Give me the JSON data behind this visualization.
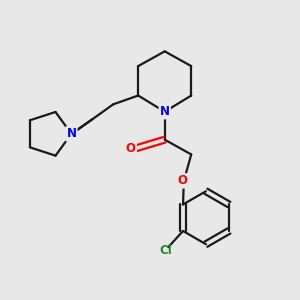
{
  "background_color": "#e8e8e8",
  "bond_color": "#1a1a1a",
  "N_color": "#0000ff",
  "O_color": "#ff0000",
  "Cl_color": "#228B22",
  "line_width": 1.6,
  "figsize": [
    3.0,
    3.0
  ],
  "dpi": 100,
  "xlim": [
    0,
    10
  ],
  "ylim": [
    0,
    10
  ]
}
